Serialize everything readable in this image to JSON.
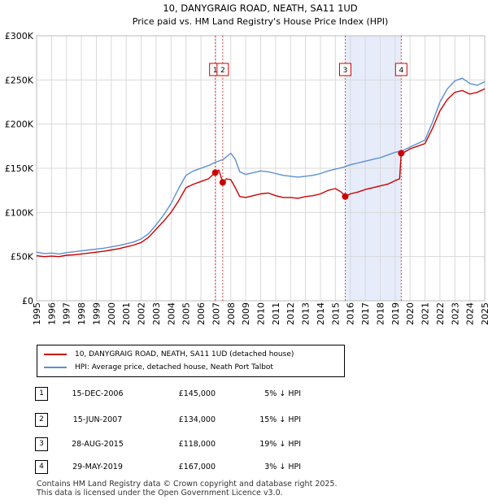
{
  "chart_data": {
    "type": "line",
    "title": "10, DANYGRAIG ROAD, NEATH, SA11 1UD",
    "subtitle": "Price paid vs. HM Land Registry's House Price Index (HPI)",
    "xlabel": "",
    "ylabel": "",
    "xlim": [
      1995,
      2025
    ],
    "ylim": [
      0,
      300000
    ],
    "y_ticks": [
      0,
      50000,
      100000,
      150000,
      200000,
      250000,
      300000
    ],
    "y_tick_labels": [
      "£0",
      "£50K",
      "£100K",
      "£150K",
      "£200K",
      "£250K",
      "£300K"
    ],
    "x_ticks": [
      1995,
      1996,
      1997,
      1998,
      1999,
      2000,
      2001,
      2002,
      2003,
      2004,
      2005,
      2006,
      2007,
      2008,
      2009,
      2010,
      2011,
      2012,
      2013,
      2014,
      2015,
      2016,
      2017,
      2018,
      2019,
      2020,
      2021,
      2022,
      2023,
      2024,
      2025
    ],
    "x_tick_labels": [
      "1995",
      "1996",
      "1997",
      "1998",
      "1999",
      "2000",
      "2001",
      "2002",
      "2003",
      "2004",
      "2005",
      "2006",
      "2007",
      "2008",
      "2009",
      "2010",
      "2011",
      "2012",
      "2013",
      "2014",
      "2015",
      "2016",
      "2017",
      "2018",
      "2019",
      "2020",
      "2021",
      "2022",
      "2023",
      "2024",
      "2025"
    ],
    "grid": true,
    "shaded_range": [
      2015.66,
      2019.41
    ],
    "series": [
      {
        "name": "10, DANYGRAIG ROAD, NEATH, SA11 1UD (detached house)",
        "color": "#cc0000",
        "x": [
          1995,
          1995.5,
          1996,
          1996.5,
          1997,
          1997.5,
          1998,
          1998.5,
          1999,
          1999.5,
          2000,
          2000.5,
          2001,
          2001.5,
          2002,
          2002.5,
          2003,
          2003.5,
          2004,
          2004.5,
          2005,
          2005.5,
          2006,
          2006.5,
          2006.96,
          2007.2,
          2007.46,
          2007.7,
          2008,
          2008.3,
          2008.6,
          2009,
          2009.5,
          2010,
          2010.5,
          2011,
          2011.5,
          2012,
          2012.5,
          2013,
          2013.5,
          2014,
          2014.5,
          2015,
          2015.4,
          2015.66,
          2016,
          2016.5,
          2017,
          2017.5,
          2018,
          2018.5,
          2019,
          2019.3,
          2019.41,
          2019.6,
          2020,
          2020.5,
          2021,
          2021.5,
          2022,
          2022.5,
          2023,
          2023.5,
          2024,
          2024.5,
          2025
        ],
        "y": [
          51000,
          50000,
          50500,
          50000,
          51500,
          52000,
          53000,
          54000,
          55000,
          56000,
          57500,
          59000,
          61000,
          63000,
          66000,
          72000,
          81000,
          90000,
          100000,
          113000,
          128000,
          132000,
          135000,
          138000,
          145000,
          148000,
          134000,
          138000,
          137000,
          128000,
          118000,
          117000,
          119000,
          121000,
          122000,
          119000,
          117000,
          117000,
          116000,
          118000,
          119000,
          121000,
          125000,
          127000,
          123000,
          118000,
          121000,
          123000,
          126000,
          128000,
          130000,
          132000,
          136000,
          138000,
          167000,
          168000,
          172000,
          175000,
          178000,
          195000,
          215000,
          228000,
          236000,
          238000,
          234000,
          236000,
          240000
        ]
      },
      {
        "name": "HPI: Average price, detached house, Neath Port Talbot",
        "color": "#5b8fd0",
        "x": [
          1995,
          1995.5,
          1996,
          1996.5,
          1997,
          1997.5,
          1998,
          1998.5,
          1999,
          1999.5,
          2000,
          2000.5,
          2001,
          2001.5,
          2002,
          2002.5,
          2003,
          2003.5,
          2004,
          2004.5,
          2005,
          2005.5,
          2006,
          2006.5,
          2007,
          2007.5,
          2008,
          2008.3,
          2008.6,
          2009,
          2009.5,
          2010,
          2010.5,
          2011,
          2011.5,
          2012,
          2012.5,
          2013,
          2013.5,
          2014,
          2014.5,
          2015,
          2015.5,
          2016,
          2016.5,
          2017,
          2017.5,
          2018,
          2018.5,
          2019,
          2019.5,
          2020,
          2020.5,
          2021,
          2021.5,
          2022,
          2022.5,
          2023,
          2023.5,
          2024,
          2024.5,
          2025
        ],
        "y": [
          55000,
          53500,
          54000,
          53000,
          54500,
          55500,
          56500,
          57500,
          58500,
          59500,
          61000,
          62500,
          64500,
          66500,
          70000,
          76000,
          86000,
          97000,
          110000,
          127000,
          142000,
          147000,
          150000,
          153000,
          157000,
          160000,
          167000,
          160000,
          146000,
          143000,
          145000,
          147000,
          146000,
          144000,
          142000,
          141000,
          140000,
          141000,
          142000,
          144000,
          147000,
          149000,
          151000,
          154000,
          156000,
          158000,
          160000,
          162000,
          165000,
          168000,
          170000,
          174000,
          178000,
          182000,
          202000,
          225000,
          240000,
          249000,
          252000,
          246000,
          244000,
          248000
        ]
      }
    ],
    "markers": [
      {
        "label": "1",
        "x": 2006.96,
        "y": 145000
      },
      {
        "label": "2",
        "x": 2007.46,
        "y": 134000
      },
      {
        "label": "3",
        "x": 2015.66,
        "y": 118000
      },
      {
        "label": "4",
        "x": 2019.41,
        "y": 167000
      }
    ]
  },
  "legend": {
    "property_label": "10, DANYGRAIG ROAD, NEATH, SA11 1UD (detached house)",
    "hpi_label": "HPI: Average price, detached house, Neath Port Talbot"
  },
  "transactions": [
    {
      "num": "1",
      "date": "15-DEC-2006",
      "price": "£145,000",
      "diff": "5% ↓ HPI"
    },
    {
      "num": "2",
      "date": "15-JUN-2007",
      "price": "£134,000",
      "diff": "15% ↓ HPI"
    },
    {
      "num": "3",
      "date": "28-AUG-2015",
      "price": "£118,000",
      "diff": "19% ↓ HPI"
    },
    {
      "num": "4",
      "date": "29-MAY-2019",
      "price": "£167,000",
      "diff": "3% ↓ HPI"
    }
  ],
  "footer": {
    "line1": "Contains HM Land Registry data © Crown copyright and database right 2025.",
    "line2": "This data is licensed under the Open Government Licence v3.0."
  },
  "colors": {
    "property": "#cc0000",
    "hpi": "#5b8fd0",
    "shade": "#e6ecfa",
    "marker_line": "#cc0000"
  }
}
